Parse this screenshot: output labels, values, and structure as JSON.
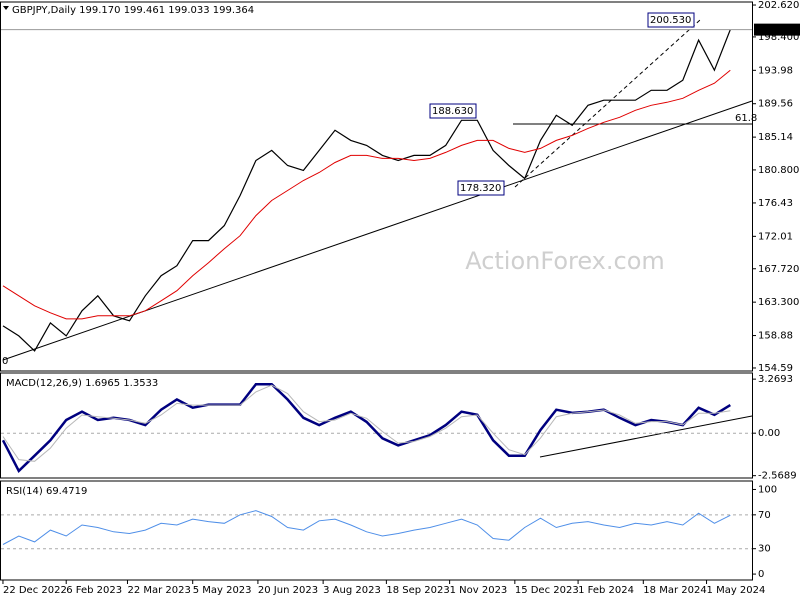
{
  "chart_data": [
    {
      "type": "line",
      "title": "GBPJPY,Daily  199.170 199.461 199.033 199.364",
      "x": [
        0,
        8,
        16,
        24,
        32,
        40,
        48,
        56,
        64,
        72,
        80,
        88,
        96,
        104,
        112,
        120,
        128,
        136,
        144,
        152,
        160,
        168,
        176,
        184,
        192,
        200,
        208,
        216,
        224,
        232,
        240,
        248,
        256,
        264,
        272,
        280,
        288,
        296,
        304,
        312,
        320,
        328,
        336,
        344,
        352,
        360,
        368
      ],
      "xlim": [
        -1.5,
        379
      ],
      "series": [
        {
          "color": "#000000",
          "values": [
            160.16,
            158.84,
            156.85,
            160.56,
            158.84,
            162.15,
            164.14,
            161.49,
            160.83,
            164.14,
            166.8,
            168.12,
            171.44,
            171.44,
            173.43,
            177.41,
            182.05,
            183.38,
            181.39,
            180.73,
            183.38,
            186.04,
            184.71,
            184.04,
            182.72,
            182.05,
            182.72,
            182.72,
            184.04,
            187.36,
            187.36,
            183.38,
            181.39,
            179.67,
            184.71,
            188.03,
            186.7,
            189.35,
            190.02,
            190.02,
            190.02,
            191.34,
            191.34,
            192.67,
            197.98,
            194.0,
            199.364
          ]
        },
        {
          "color": "#e00000",
          "values": [
            165.47,
            164.14,
            162.82,
            161.89,
            161.09,
            161.09,
            161.49,
            161.49,
            161.49,
            162.15,
            163.48,
            164.81,
            166.8,
            168.52,
            170.38,
            172.1,
            174.76,
            176.75,
            178.07,
            179.4,
            180.46,
            181.78,
            182.72,
            182.72,
            182.32,
            182.32,
            182.05,
            182.32,
            183.12,
            184.04,
            184.71,
            184.71,
            183.65,
            183.12,
            183.65,
            184.71,
            185.37,
            186.3,
            187.1,
            187.76,
            188.69,
            189.35,
            189.75,
            190.28,
            191.34,
            192.27,
            194.0
          ]
        }
      ],
      "ylim": [
        154.19,
        203.02
      ],
      "yticks": [
        {
          "value": 202.62,
          "label": "202.620"
        },
        {
          "value": 198.4,
          "label": "198.400"
        },
        193.98,
        189.56,
        185.14,
        {
          "value": 180.8,
          "label": "180.800"
        },
        176.43,
        172.01,
        {
          "value": 167.72,
          "label": "167.720"
        },
        {
          "value": 163.3,
          "label": "163.300"
        },
        158.88,
        154.59
      ],
      "annotations": [
        "200.530",
        "188.630",
        "178.320",
        "61.8",
        "0",
        "199.364"
      ],
      "watermark": "ActionForex.com"
    },
    {
      "type": "line",
      "title": "MACD(12,26,9) 1.6965 1.3533",
      "x": [
        0,
        8,
        16,
        24,
        32,
        40,
        48,
        56,
        64,
        72,
        80,
        88,
        96,
        104,
        112,
        120,
        128,
        136,
        144,
        152,
        160,
        168,
        176,
        184,
        192,
        200,
        208,
        216,
        224,
        232,
        240,
        248,
        256,
        264,
        272,
        280,
        288,
        296,
        304,
        312,
        320,
        328,
        336,
        344,
        352,
        360,
        368
      ],
      "xlim": [
        -1.5,
        379
      ],
      "series": [
        {
          "color": "#00007f",
          "values": [
            -0.43,
            -2.28,
            -1.36,
            -0.43,
            0.8,
            1.3,
            0.8,
            0.93,
            0.8,
            0.49,
            1.42,
            2.04,
            1.54,
            1.73,
            1.73,
            1.73,
            2.96,
            2.96,
            2.04,
            0.93,
            0.49,
            0.93,
            1.3,
            0.68,
            -0.31,
            -0.74,
            -0.43,
            -0.12,
            0.49,
            1.3,
            1.11,
            -0.43,
            -1.36,
            -1.36,
            0.19,
            1.42,
            1.23,
            1.3,
            1.42,
            0.93,
            0.49,
            0.8,
            0.68,
            0.49,
            1.54,
            1.11,
            1.6965
          ]
        },
        {
          "color": "#b8b8b8",
          "values": [
            -0.2,
            -1.6,
            -1.7,
            -0.9,
            0.3,
            1.1,
            1.0,
            0.9,
            0.8,
            0.6,
            1.1,
            1.8,
            1.7,
            1.7,
            1.7,
            1.7,
            2.5,
            2.9,
            2.4,
            1.3,
            0.7,
            0.8,
            1.2,
            0.9,
            0.1,
            -0.6,
            -0.5,
            -0.2,
            0.3,
            1.0,
            1.1,
            0.0,
            -1.0,
            -1.3,
            -0.3,
            1.0,
            1.2,
            1.3,
            1.4,
            1.1,
            0.6,
            0.7,
            0.7,
            0.5,
            1.2,
            1.2,
            1.3533
          ]
        }
      ],
      "ylim": [
        -2.71,
        3.64
      ],
      "yticks": [
        3.2693,
        {
          "value": 0,
          "label": "0.00"
        },
        -2.5689
      ],
      "levels": [
        0
      ]
    },
    {
      "type": "line",
      "title": "RSI(14) 69.4719",
      "x": [
        0,
        8,
        16,
        24,
        32,
        40,
        48,
        56,
        64,
        72,
        80,
        88,
        96,
        104,
        112,
        120,
        128,
        136,
        144,
        152,
        160,
        168,
        176,
        184,
        192,
        200,
        208,
        216,
        224,
        232,
        240,
        248,
        256,
        264,
        272,
        280,
        288,
        296,
        304,
        312,
        320,
        328,
        336,
        344,
        352,
        360,
        368
      ],
      "xlim": [
        -1.5,
        379
      ],
      "series": [
        {
          "color": "#4f8fe8",
          "values": [
            35,
            45,
            38,
            52,
            45,
            58,
            55,
            50,
            48,
            52,
            60,
            58,
            65,
            62,
            60,
            70,
            75,
            68,
            55,
            52,
            63,
            65,
            58,
            50,
            45,
            48,
            52,
            55,
            60,
            65,
            58,
            42,
            40,
            55,
            66,
            55,
            60,
            62,
            58,
            55,
            60,
            58,
            62,
            58,
            72,
            60,
            69.4719
          ]
        }
      ],
      "ylim": [
        -7,
        110
      ],
      "yticks": [
        100,
        70,
        30,
        0
      ],
      "levels": [
        70,
        30
      ],
      "xticks": [
        {
          "value": 0,
          "label": "22 Dec 2022"
        },
        {
          "value": 32,
          "label": "6 Feb 2023"
        },
        {
          "value": 63,
          "label": "22 Mar 2023"
        },
        {
          "value": 96,
          "label": "5 May 2023"
        },
        {
          "value": 129,
          "label": "20 Jun 2023"
        },
        {
          "value": 162,
          "label": "3 Aug 2023"
        },
        {
          "value": 194,
          "label": "18 Sep 2023"
        },
        {
          "value": 226,
          "label": "1 Nov 2023"
        },
        {
          "value": 259,
          "label": "15 Dec 2023"
        },
        {
          "value": 291,
          "label": "1 Feb 2024"
        },
        {
          "value": 324,
          "label": "18 Mar 2024"
        },
        {
          "value": 356,
          "label": "1 May 2024"
        }
      ]
    }
  ]
}
